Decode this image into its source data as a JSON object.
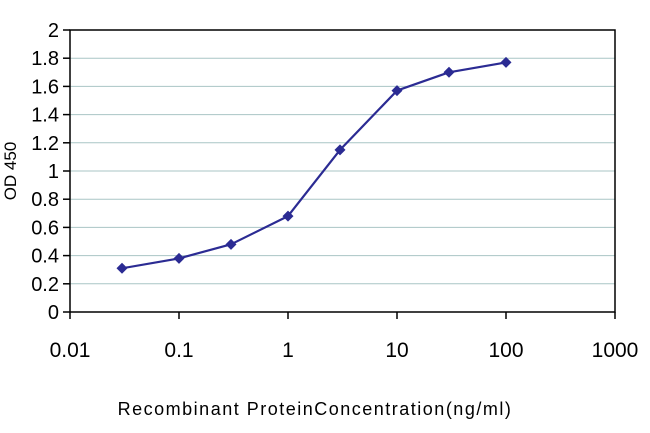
{
  "chart_data": {
    "type": "line",
    "title": "",
    "xlabel": "Recombinant ProteinConcentration(ng/ml)",
    "ylabel": "OD 450",
    "x_scale": "log",
    "xlim": [
      0.01,
      1000
    ],
    "ylim": [
      0,
      2
    ],
    "x_ticks": [
      "0.01",
      "0.1",
      "1",
      "10",
      "100",
      "1000"
    ],
    "y_ticks": [
      "0",
      "0.2",
      "0.4",
      "0.6",
      "0.8",
      "1",
      "1.2",
      "1.4",
      "1.6",
      "1.8",
      "2"
    ],
    "series": [
      {
        "name": "OD450",
        "x": [
          0.03,
          0.1,
          0.3,
          1,
          3,
          10,
          30,
          100
        ],
        "y": [
          0.31,
          0.38,
          0.48,
          0.68,
          1.15,
          1.57,
          1.7,
          1.77
        ]
      }
    ],
    "grid": "horizontal",
    "legend": "none",
    "marker": "diamond",
    "line_color": "#2b2b93",
    "marker_color": "#2b2b93",
    "grid_color": "#a9c5c5",
    "axis_color": "#000000",
    "background": "#ffffff"
  }
}
